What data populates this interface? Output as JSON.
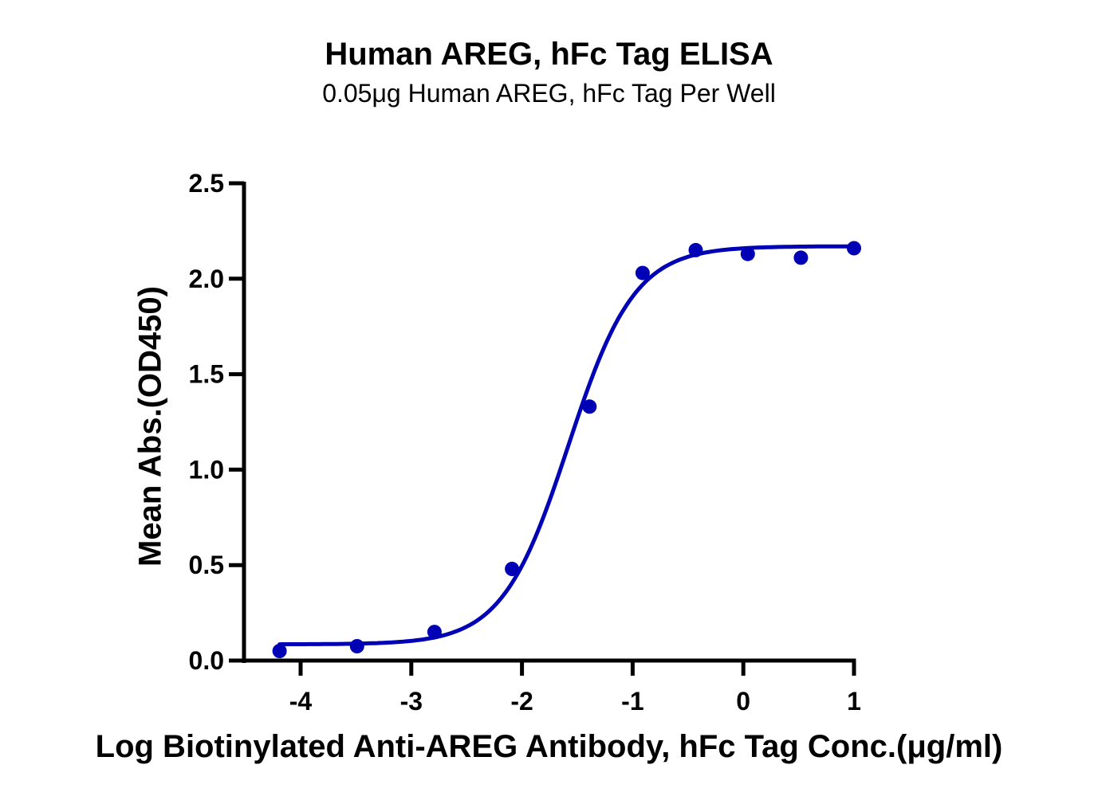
{
  "chart_data": {
    "type": "scatter",
    "title": "Human AREG, hFc Tag ELISA",
    "subtitle": "0.05μg Human AREG, hFc Tag Per Well",
    "xlabel": "Log Biotinylated Anti-AREG Antibody, hFc Tag Conc.(μg/ml)",
    "ylabel": "Mean Abs.(OD450)",
    "xlim": [
      -4.19,
      1
    ],
    "ylim": [
      0,
      2.5
    ],
    "x_ticks": [
      -4,
      -3,
      -2,
      -1,
      0,
      1
    ],
    "x_tick_labels": [
      "-4",
      "-3",
      "-2",
      "-1",
      "0",
      "1"
    ],
    "y_ticks": [
      0,
      0.5,
      1,
      1.5,
      2,
      2.5
    ],
    "y_tick_labels": [
      "0.0",
      "0.5",
      "1.0",
      "1.5",
      "2.0",
      "2.5"
    ],
    "grid": false,
    "legend": null,
    "series": [
      {
        "name": "Human AREG, hFc Tag",
        "color": "#0000b4",
        "marker": "circle",
        "x": [
          -4.19,
          -3.49,
          -2.79,
          -2.09,
          -1.39,
          -0.91,
          -0.43,
          0.04,
          0.52,
          1.0
        ],
        "y": [
          0.05,
          0.075,
          0.15,
          0.48,
          1.33,
          2.03,
          2.15,
          2.13,
          2.11,
          2.16
        ],
        "fit": {
          "model": "4PL",
          "bottom": 0.085,
          "top": 2.17,
          "logEC50": -1.58,
          "hill_slope": 1.45
        }
      }
    ]
  },
  "colors": {
    "series": "#0000b4",
    "axis": "#000000",
    "background": "#ffffff"
  }
}
